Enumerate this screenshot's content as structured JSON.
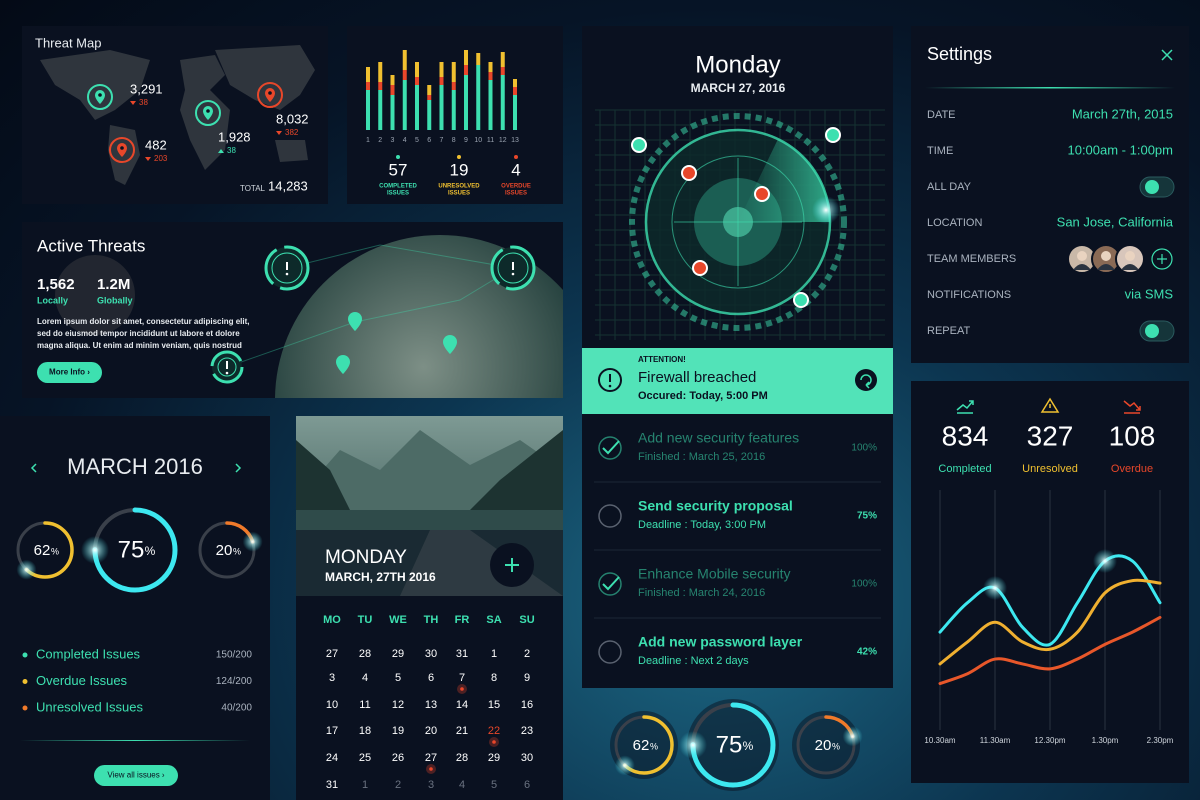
{
  "threat_map": {
    "title": "Threat Map",
    "total_label": "TOTAL",
    "total": "14,283",
    "points": [
      {
        "value": "3,291",
        "change": 38,
        "trend": "down",
        "color": "#3de0b0"
      },
      {
        "value": "1,928",
        "change": 38,
        "trend": "up",
        "color": "#3de0b0"
      },
      {
        "value": "8,032",
        "change": 382,
        "trend": "down",
        "color": "#e8472a"
      },
      {
        "value": "482",
        "change": 203,
        "trend": "down",
        "color": "#e8472a"
      }
    ]
  },
  "mini_chart": {
    "type": "bar",
    "categories": [
      1,
      2,
      3,
      4,
      5,
      6,
      7,
      8,
      9,
      10,
      11,
      12,
      13
    ],
    "ylim": [
      0,
      90
    ],
    "series": [
      {
        "color": "#3de0b0",
        "values": [
          40,
          40,
          35,
          50,
          45,
          30,
          45,
          40,
          55,
          65,
          50,
          55,
          35
        ]
      },
      {
        "color": "#e8472a",
        "values": [
          8,
          8,
          10,
          10,
          8,
          5,
          8,
          8,
          10,
          0,
          8,
          8,
          8
        ]
      },
      {
        "color": "#f0c030",
        "values": [
          15,
          20,
          10,
          20,
          15,
          10,
          15,
          20,
          15,
          12,
          10,
          15,
          8
        ]
      }
    ],
    "summary": [
      {
        "value": 57,
        "label": "COMPLETED",
        "label2": "ISSUES",
        "color": "#3de0b0"
      },
      {
        "value": 19,
        "label": "UNRESOLVED",
        "label2": "ISSUES",
        "color": "#f0c030"
      },
      {
        "value": 4,
        "label": "OVERDUE",
        "label2": "ISSUES",
        "color": "#e8472a"
      }
    ]
  },
  "radar": {
    "day": "Monday",
    "date": "MARCH 27, 2016"
  },
  "alert": {
    "heading": "ATTENTION!",
    "title": "Firewall breached",
    "time": "Occured: Today, 5:00 PM"
  },
  "tasks": [
    {
      "title": "Add new security features",
      "sub": "Finished : March 25, 2016",
      "percent": "100%",
      "done": true
    },
    {
      "title": "Send security proposal",
      "sub": "Deadline : Today, 3:00 PM",
      "percent": "75%",
      "done": false
    },
    {
      "title": "Enhance Mobile security",
      "sub": "Finished : March 24, 2016",
      "percent": "100%",
      "done": true
    },
    {
      "title": "Add new password layer",
      "sub": "Deadline : Next 2 days",
      "percent": "42%",
      "done": false
    }
  ],
  "settings": {
    "title": "Settings",
    "rows": [
      {
        "label": "DATE",
        "value": "March 27th, 2015"
      },
      {
        "label": "TIME",
        "value": "10:00am  -  1:00pm"
      },
      {
        "label": "ALL DAY",
        "toggle": true
      },
      {
        "label": "LOCATION",
        "value": "San Jose, California"
      },
      {
        "label": "TEAM MEMBERS",
        "avatars": 3
      },
      {
        "label": "NOTIFICATIONS",
        "value": "via SMS"
      },
      {
        "label": "REPEAT",
        "toggle": true
      }
    ]
  },
  "active_threats": {
    "title": "Active Threats",
    "stats": [
      {
        "value": "1,562",
        "label": "Locally"
      },
      {
        "value": "1.2M",
        "label": "Globally"
      }
    ],
    "body_lines": [
      "Lorem ipsum dolor sit amet, consectetur adipiscing elit,",
      "sed do eiusmod tempor incididunt ut labore et dolore",
      "magna aliqua. Ut enim ad minim veniam, quis nostrud"
    ],
    "button": "More Info ›"
  },
  "issues": {
    "month": "MARCH 2016",
    "gauges": [
      {
        "value": 62,
        "unit": "%",
        "color": "#f0c030"
      },
      {
        "value": 75,
        "unit": "%",
        "color": "#3de8f0"
      },
      {
        "value": 20,
        "unit": "%",
        "color": "#f07a2a"
      }
    ],
    "legend": [
      {
        "label": "Completed Issues",
        "value": "150/200",
        "color": "#3de0b0"
      },
      {
        "label": "Overdue Issues",
        "value": "124/200",
        "color": "#f0c030"
      },
      {
        "label": "Unresolved Issues",
        "value": "40/200",
        "color": "#f07a2a"
      }
    ],
    "button": "View all issues ›"
  },
  "calendar": {
    "day": "MONDAY",
    "date": "MARCH, 27TH 2016",
    "weekdays": [
      "MO",
      "TU",
      "WE",
      "TH",
      "FR",
      "SA",
      "SU"
    ],
    "weeks": [
      [
        27,
        28,
        29,
        30,
        31,
        1,
        2
      ],
      [
        3,
        4,
        5,
        6,
        7,
        8,
        9
      ],
      [
        10,
        11,
        12,
        13,
        14,
        15,
        16
      ],
      [
        17,
        18,
        19,
        20,
        21,
        22,
        23
      ],
      [
        24,
        25,
        26,
        27,
        28,
        29,
        30
      ],
      [
        31,
        1,
        2,
        3,
        4,
        5,
        6
      ]
    ],
    "events": [
      7,
      22,
      27
    ],
    "highlight": 22
  },
  "bottom_gauges": [
    {
      "value": 62,
      "unit": "%",
      "color": "#f0c030"
    },
    {
      "value": 75,
      "unit": "%",
      "color": "#3de8f0"
    },
    {
      "value": 20,
      "unit": "%",
      "color": "#f07a2a"
    }
  ],
  "stats": [
    {
      "value": 834,
      "label": "Completed",
      "color": "#3de0b0"
    },
    {
      "value": 327,
      "label": "Unresolved",
      "color": "#f0c030"
    },
    {
      "value": 108,
      "label": "Overdue",
      "color": "#e8472a"
    }
  ],
  "chart_data": {
    "type": "line",
    "categories": [
      "10.30am",
      null,
      "11.30am",
      null,
      "12.30pm",
      null,
      "1.30pm",
      null,
      "2.30pm"
    ],
    "ylim": [
      0,
      100
    ],
    "series": [
      {
        "color": "#3de8f0",
        "values": [
          42,
          54,
          60,
          44,
          37,
          54,
          71,
          71,
          54
        ]
      },
      {
        "color": "#f0b030",
        "values": [
          29,
          38,
          46,
          38,
          35,
          42,
          58,
          63,
          62
        ]
      },
      {
        "color": "#e8572a",
        "values": [
          21,
          25,
          31,
          29,
          27,
          31,
          37,
          42,
          48
        ]
      }
    ]
  }
}
